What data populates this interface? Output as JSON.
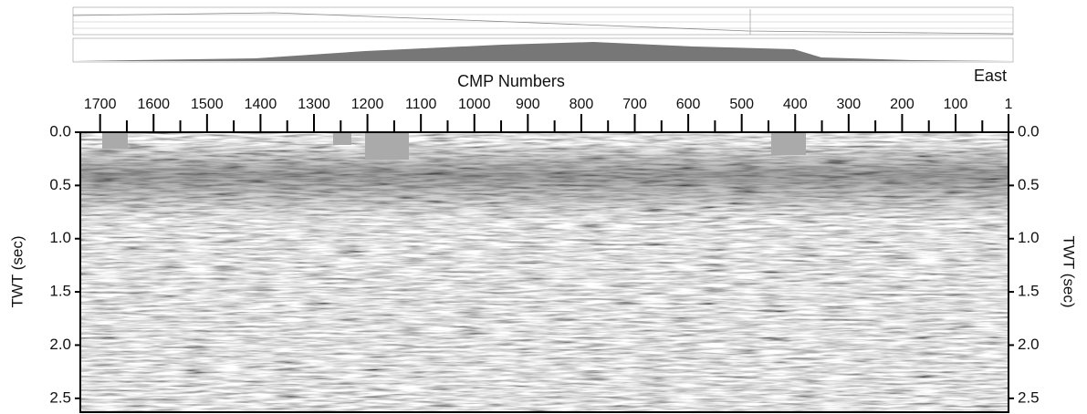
{
  "top_axis": {
    "label": "CMP Numbers",
    "range": [
      1737,
      1
    ],
    "ticks": [
      1700,
      1600,
      1500,
      1400,
      1300,
      1200,
      1100,
      1000,
      900,
      800,
      700,
      600,
      500,
      400,
      300,
      200,
      100,
      1
    ],
    "minor_ticks": [
      1650,
      1550,
      1450,
      1350,
      1250,
      1150,
      1050,
      950,
      850,
      750,
      650,
      550,
      450,
      350,
      250,
      150,
      50
    ]
  },
  "direction_label": "East",
  "time_axis": {
    "label": "TWT (sec)",
    "range": [
      0,
      2.63
    ],
    "ticks": [
      {
        "value": 0,
        "label": "0.0"
      },
      {
        "value": 0.5,
        "label": "0.5"
      },
      {
        "value": 1,
        "label": "1.0"
      },
      {
        "value": 1.5,
        "label": "1.5"
      },
      {
        "value": 2,
        "label": "2.0"
      },
      {
        "value": 2.5,
        "label": "2.5"
      }
    ]
  }
}
